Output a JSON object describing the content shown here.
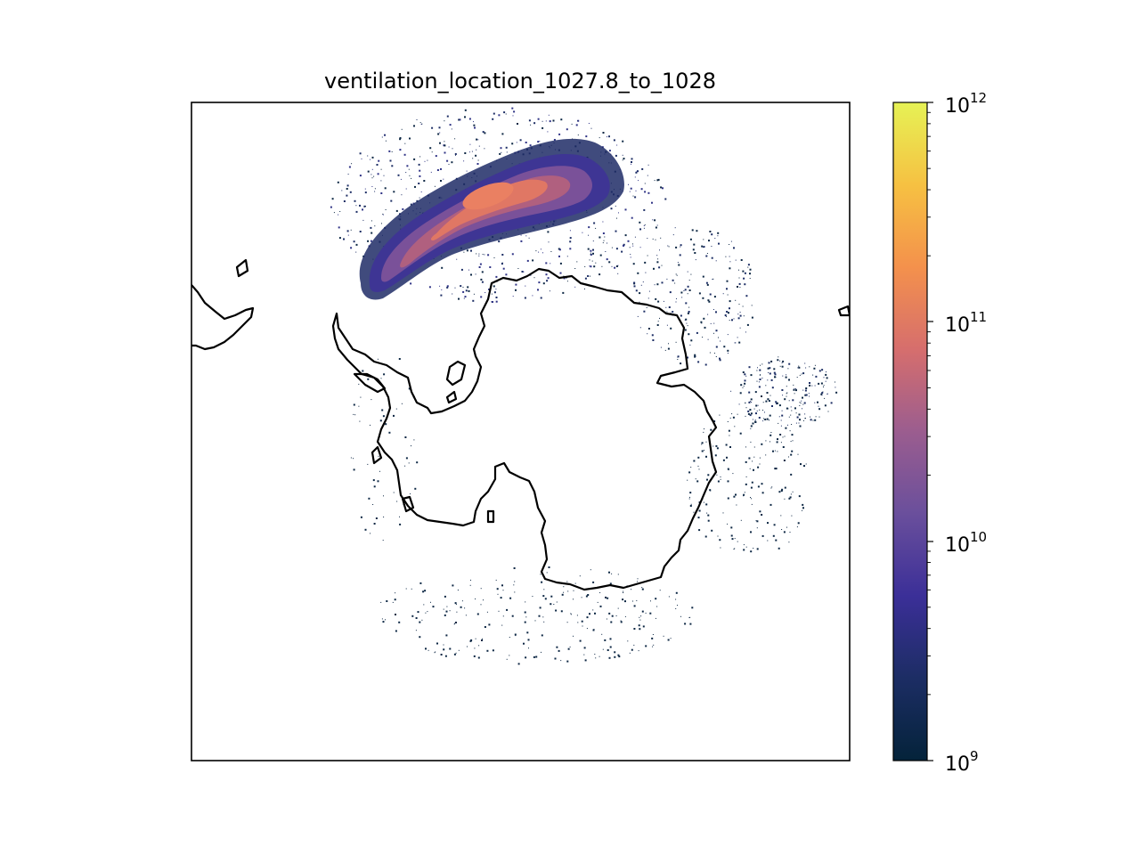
{
  "title": "ventilation_location_1027.8_to_1028",
  "colorbar": {
    "scale": "log",
    "colormap": "thermal",
    "stops": [
      "#04233a",
      "#1c2d64",
      "#3b2f98",
      "#6a4f9c",
      "#9b5d8f",
      "#d66e6d",
      "#f4914c",
      "#f6c142",
      "#e6f255"
    ],
    "ticks": [
      {
        "base": "10",
        "exp": "12",
        "value": 1000000000000.0
      },
      {
        "base": "10",
        "exp": "11",
        "value": 100000000000.0
      },
      {
        "base": "10",
        "exp": "10",
        "value": 10000000000.0
      },
      {
        "base": "10",
        "exp": "9",
        "value": 1000000000.0
      }
    ],
    "range": [
      1000000000.0,
      1000000000000.0
    ]
  },
  "map": {
    "projection": "south-polar-stereographic",
    "coastline_color": "#000000",
    "background": "#ffffff"
  }
}
